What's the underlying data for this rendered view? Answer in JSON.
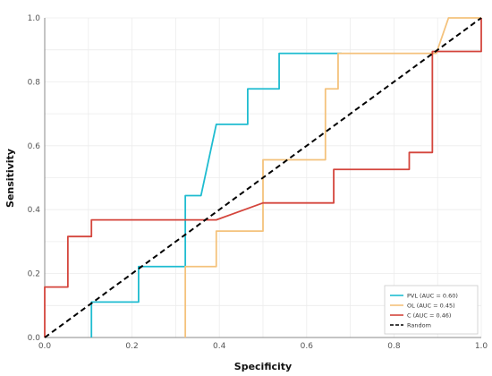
{
  "chart_data": {
    "type": "line",
    "title": "",
    "xlabel": "Specificity",
    "ylabel": "Sensitivity",
    "xlim": [
      0,
      1
    ],
    "ylim": [
      0,
      1
    ],
    "xticks": [
      "0.0",
      "0.2",
      "0.4",
      "0.6",
      "0.8",
      "1.0"
    ],
    "yticks": [
      "0.0",
      "0.2",
      "0.4",
      "0.6",
      "0.8",
      "1.0"
    ],
    "grid": true,
    "legend_position": "bottom-right",
    "series": [
      {
        "name": "PVL (AUC = 0.60)",
        "color": "#1fbcd0",
        "points": [
          [
            0.107,
            0.0
          ],
          [
            0.107,
            0.111
          ],
          [
            0.215,
            0.111
          ],
          [
            0.215,
            0.222
          ],
          [
            0.322,
            0.222
          ],
          [
            0.322,
            0.444
          ],
          [
            0.358,
            0.444
          ],
          [
            0.393,
            0.667
          ],
          [
            0.465,
            0.667
          ],
          [
            0.465,
            0.778
          ],
          [
            0.537,
            0.778
          ],
          [
            0.537,
            0.889
          ],
          [
            0.68,
            0.889
          ]
        ]
      },
      {
        "name": "OL  (AUC = 0.45)",
        "color": "#f4c27c",
        "points": [
          [
            0.322,
            0.0
          ],
          [
            0.322,
            0.222
          ],
          [
            0.393,
            0.222
          ],
          [
            0.393,
            0.333
          ],
          [
            0.5,
            0.333
          ],
          [
            0.5,
            0.556
          ],
          [
            0.643,
            0.556
          ],
          [
            0.643,
            0.778
          ],
          [
            0.672,
            0.778
          ],
          [
            0.672,
            0.889
          ],
          [
            0.897,
            0.889
          ],
          [
            0.925,
            1.0
          ],
          [
            1.0,
            1.0
          ]
        ]
      },
      {
        "name": "C    (AUC = 0.46)",
        "color": "#d4453c",
        "points": [
          [
            0.0,
            0.0
          ],
          [
            0.0,
            0.158
          ],
          [
            0.053,
            0.158
          ],
          [
            0.053,
            0.316
          ],
          [
            0.107,
            0.316
          ],
          [
            0.107,
            0.368
          ],
          [
            0.393,
            0.368
          ],
          [
            0.5,
            0.421
          ],
          [
            0.662,
            0.421
          ],
          [
            0.662,
            0.526
          ],
          [
            0.835,
            0.526
          ],
          [
            0.835,
            0.579
          ],
          [
            0.888,
            0.579
          ],
          [
            0.888,
            0.895
          ],
          [
            1.0,
            0.895
          ],
          [
            1.0,
            1.0
          ]
        ]
      },
      {
        "name": "Random",
        "color": "#000000",
        "dashed": true,
        "points": [
          [
            0.0,
            0.0
          ],
          [
            1.0,
            1.0
          ]
        ]
      }
    ]
  }
}
